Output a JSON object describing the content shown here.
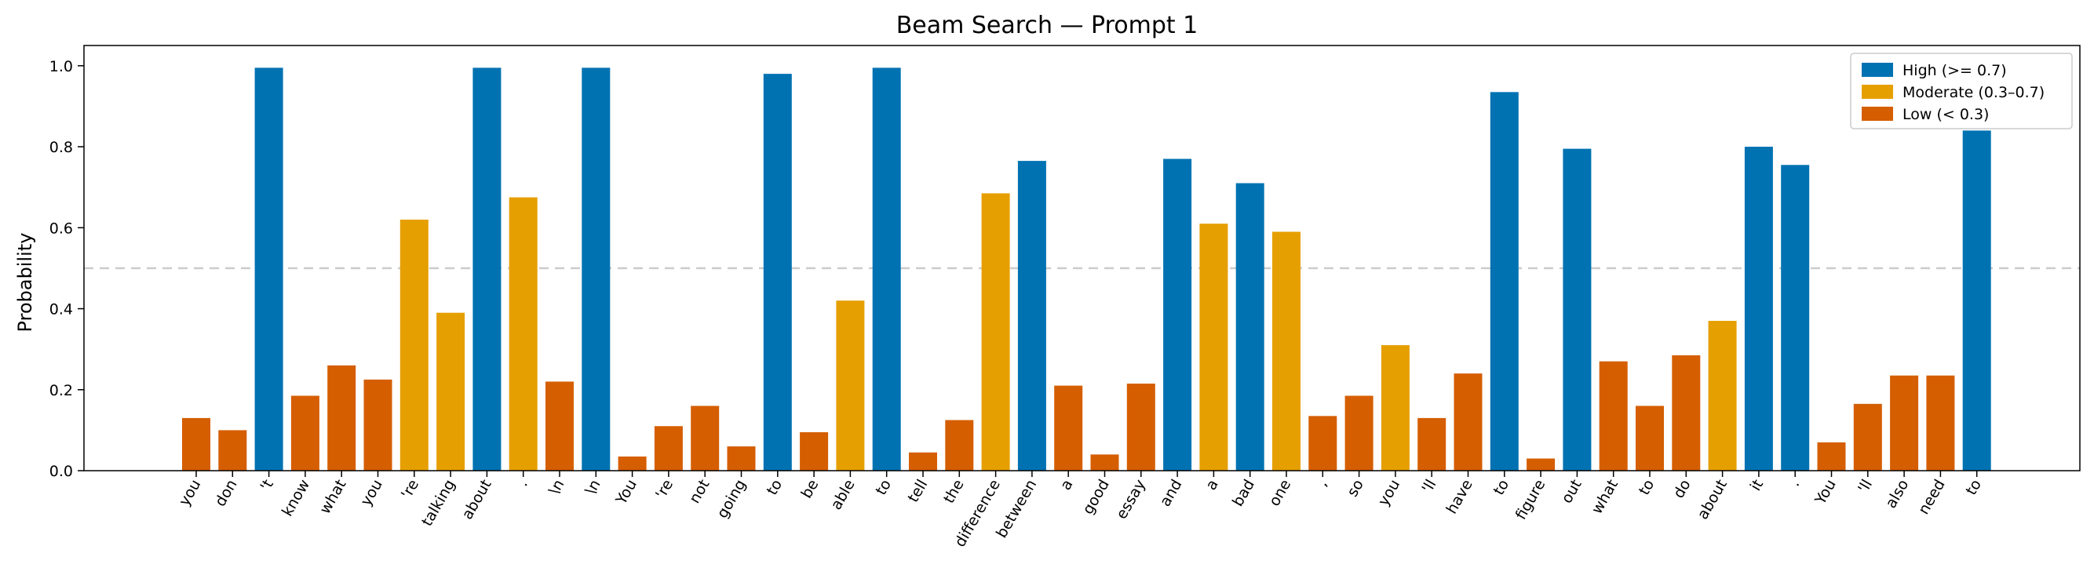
{
  "chart_data": {
    "type": "bar",
    "title": "Beam Search — Prompt 1",
    "xlabel": "",
    "ylabel": "Probability",
    "ylim": [
      0,
      1.05
    ],
    "yticks": [
      "0.0",
      "0.2",
      "0.4",
      "0.6",
      "0.8",
      "1.0"
    ],
    "reference_line": 0.5,
    "grid": false,
    "legend_position": "top-right",
    "colors": {
      "high": "#0072B2",
      "moderate": "#E69F00",
      "low": "#D55E00",
      "reference": "#cccccc"
    },
    "legend": [
      {
        "key": "high",
        "label": "High (>= 0.7)"
      },
      {
        "key": "moderate",
        "label": "Moderate (0.3–0.7)"
      },
      {
        "key": "low",
        "label": "Low (< 0.3)"
      }
    ],
    "categories": [
      "you",
      "don",
      "'t",
      "know",
      "what",
      "you",
      "'re",
      "talking",
      "about",
      ".",
      "\\n",
      "\\n",
      "You",
      "'re",
      "not",
      "going",
      "to",
      "be",
      "able",
      "to",
      "tell",
      "the",
      "difference",
      "between",
      "a",
      "good",
      "essay",
      "and",
      "a",
      "bad",
      "one",
      ",",
      "so",
      "you",
      "'ll",
      "have",
      "to",
      "figure",
      "out",
      "what",
      "to",
      "do",
      "about",
      "it",
      ".",
      "You",
      "'ll",
      "also",
      "need",
      "to"
    ],
    "values": [
      0.13,
      0.1,
      0.995,
      0.185,
      0.26,
      0.225,
      0.62,
      0.39,
      0.995,
      0.675,
      0.22,
      0.995,
      0.035,
      0.11,
      0.16,
      0.06,
      0.98,
      0.095,
      0.42,
      0.995,
      0.045,
      0.125,
      0.685,
      0.765,
      0.21,
      0.04,
      0.215,
      0.77,
      0.61,
      0.71,
      0.59,
      0.135,
      0.185,
      0.31,
      0.13,
      0.24,
      0.935,
      0.03,
      0.795,
      0.27,
      0.16,
      0.285,
      0.37,
      0.8,
      0.755,
      0.07,
      0.165,
      0.235,
      0.235,
      0.84
    ]
  }
}
